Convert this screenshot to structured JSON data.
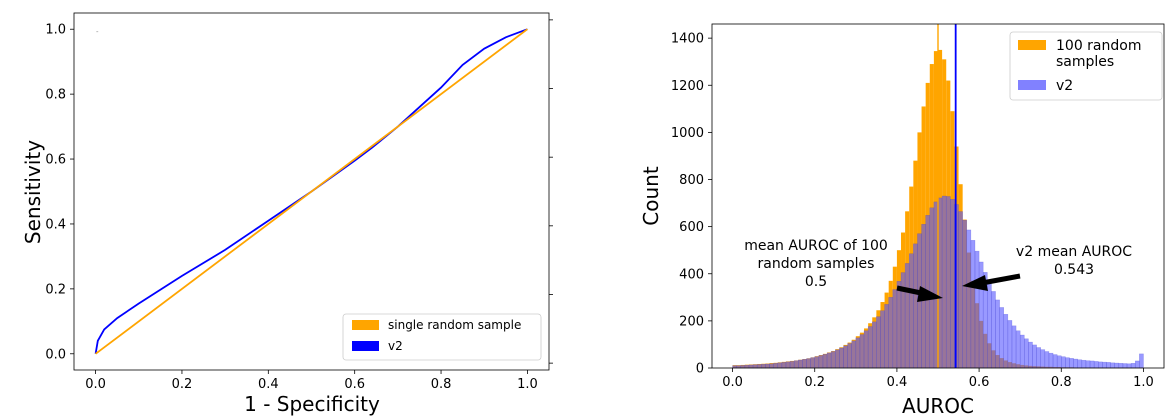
{
  "chart_data": [
    {
      "type": "line",
      "xlabel": "1 - Specificity",
      "ylabel": "Sensitivity",
      "xlim": [
        -0.05,
        1.05
      ],
      "ylim": [
        -0.05,
        1.05
      ],
      "xticks": [
        "0.0",
        "0.2",
        "0.4",
        "0.6",
        "0.8",
        "1.0"
      ],
      "yticks": [
        "0.0",
        "0.2",
        "0.4",
        "0.6",
        "0.8",
        "1.0"
      ],
      "legend_position": "lower-right",
      "series": [
        {
          "name": "single random sample",
          "color": "#ffa500",
          "x": [
            0.0,
            1.0
          ],
          "y": [
            0.0,
            1.0
          ]
        },
        {
          "name": "v2",
          "color": "#0000ff",
          "x": [
            0.0,
            0.005,
            0.02,
            0.05,
            0.1,
            0.2,
            0.3,
            0.4,
            0.5,
            0.6,
            0.64,
            0.7,
            0.8,
            0.85,
            0.9,
            0.95,
            1.0
          ],
          "y": [
            0.0,
            0.04,
            0.075,
            0.11,
            0.155,
            0.24,
            0.32,
            0.41,
            0.5,
            0.595,
            0.635,
            0.7,
            0.82,
            0.89,
            0.94,
            0.975,
            1.0
          ]
        }
      ]
    },
    {
      "type": "bar",
      "xlabel": "AUROC",
      "ylabel": "Count",
      "xlim": [
        -0.05,
        1.05
      ],
      "ylim": [
        0,
        1460
      ],
      "xticks": [
        "0.0",
        "0.2",
        "0.4",
        "0.6",
        "0.8",
        "1.0"
      ],
      "yticks": [
        "0",
        "200",
        "400",
        "600",
        "800",
        "1000",
        "1200",
        "1400"
      ],
      "legend_position": "top-right",
      "bin_width": 0.01,
      "series": [
        {
          "name": "100 random samples",
          "color": "#ffa500",
          "bin_starts": [
            0.0,
            0.01,
            0.02,
            0.03,
            0.04,
            0.05,
            0.06,
            0.07,
            0.08,
            0.09,
            0.1,
            0.11,
            0.12,
            0.13,
            0.14,
            0.15,
            0.16,
            0.17,
            0.18,
            0.19,
            0.2,
            0.21,
            0.22,
            0.23,
            0.24,
            0.25,
            0.26,
            0.27,
            0.28,
            0.29,
            0.3,
            0.31,
            0.32,
            0.33,
            0.34,
            0.35,
            0.36,
            0.37,
            0.38,
            0.39,
            0.4,
            0.41,
            0.42,
            0.43,
            0.44,
            0.45,
            0.46,
            0.47,
            0.48,
            0.49,
            0.5,
            0.51,
            0.52,
            0.53,
            0.54,
            0.55,
            0.56,
            0.57,
            0.58,
            0.59,
            0.6,
            0.61,
            0.62,
            0.63,
            0.64,
            0.65,
            0.66,
            0.67,
            0.68,
            0.69,
            0.7,
            0.71,
            0.72,
            0.73,
            0.74,
            0.75,
            0.76,
            0.77,
            0.78,
            0.79,
            0.8,
            0.81,
            0.82,
            0.83,
            0.84,
            0.85,
            0.86,
            0.87,
            0.88,
            0.89,
            0.9,
            0.91,
            0.92,
            0.93,
            0.94,
            0.95,
            0.96,
            0.97,
            0.98,
            0.99
          ],
          "values": [
            12,
            12,
            13,
            14,
            15,
            16,
            17,
            18,
            19,
            21,
            22,
            24,
            26,
            28,
            30,
            32,
            35,
            38,
            41,
            45,
            50,
            55,
            60,
            66,
            72,
            80,
            88,
            98,
            108,
            120,
            135,
            150,
            168,
            190,
            215,
            245,
            280,
            320,
            370,
            430,
            500,
            575,
            665,
            770,
            880,
            1000,
            1110,
            1210,
            1290,
            1345,
            1350,
            1310,
            1220,
            1090,
            940,
            780,
            630,
            490,
            370,
            275,
            200,
            145,
            105,
            75,
            55,
            42,
            32,
            25,
            20,
            16,
            13,
            11,
            9,
            8,
            7,
            6,
            5,
            5,
            4,
            4,
            3,
            3,
            3,
            2,
            2,
            2,
            2,
            2,
            1,
            1,
            1,
            1,
            1,
            1,
            1,
            1,
            1,
            1,
            1,
            1
          ]
        },
        {
          "name": "v2",
          "color": "#6b6bff",
          "bin_starts": [
            0.0,
            0.01,
            0.02,
            0.03,
            0.04,
            0.05,
            0.06,
            0.07,
            0.08,
            0.09,
            0.1,
            0.11,
            0.12,
            0.13,
            0.14,
            0.15,
            0.16,
            0.17,
            0.18,
            0.19,
            0.2,
            0.21,
            0.22,
            0.23,
            0.24,
            0.25,
            0.26,
            0.27,
            0.28,
            0.29,
            0.3,
            0.31,
            0.32,
            0.33,
            0.34,
            0.35,
            0.36,
            0.37,
            0.38,
            0.39,
            0.4,
            0.41,
            0.42,
            0.43,
            0.44,
            0.45,
            0.46,
            0.47,
            0.48,
            0.49,
            0.5,
            0.51,
            0.52,
            0.53,
            0.54,
            0.55,
            0.56,
            0.57,
            0.58,
            0.59,
            0.6,
            0.61,
            0.62,
            0.63,
            0.64,
            0.65,
            0.66,
            0.67,
            0.68,
            0.69,
            0.7,
            0.71,
            0.72,
            0.73,
            0.74,
            0.75,
            0.76,
            0.77,
            0.78,
            0.79,
            0.8,
            0.81,
            0.82,
            0.83,
            0.84,
            0.85,
            0.86,
            0.87,
            0.88,
            0.89,
            0.9,
            0.91,
            0.92,
            0.93,
            0.94,
            0.95,
            0.96,
            0.97,
            0.98,
            0.99
          ],
          "values": [
            10,
            10,
            11,
            12,
            13,
            14,
            15,
            16,
            17,
            18,
            20,
            22,
            24,
            26,
            28,
            31,
            34,
            37,
            40,
            44,
            48,
            53,
            58,
            64,
            70,
            77,
            85,
            94,
            104,
            115,
            128,
            142,
            158,
            176,
            196,
            218,
            243,
            270,
            300,
            333,
            368,
            405,
            444,
            485,
            527,
            570,
            610,
            648,
            680,
            705,
            722,
            730,
            728,
            716,
            694,
            664,
            627,
            586,
            542,
            496,
            450,
            406,
            364,
            325,
            289,
            257,
            228,
            202,
            179,
            158,
            140,
            124,
            110,
            98,
            87,
            78,
            70,
            63,
            57,
            52,
            48,
            44,
            41,
            38,
            35,
            33,
            31,
            30,
            28,
            26,
            25,
            24,
            22,
            21,
            20,
            19,
            18,
            20,
            30,
            60
          ]
        }
      ],
      "vlines": [
        {
          "label": "mean AUROC of 100 random samples",
          "x": 0.5,
          "color": "#ffa500"
        },
        {
          "label": "v2 mean AUROC",
          "x": 0.543,
          "color": "#0000ff"
        }
      ],
      "annotations": [
        {
          "lines": [
            "mean AUROC of 100",
            "random samples",
            "0.5"
          ]
        },
        {
          "lines": [
            "v2 mean AUROC",
            "0.543"
          ]
        }
      ]
    }
  ]
}
